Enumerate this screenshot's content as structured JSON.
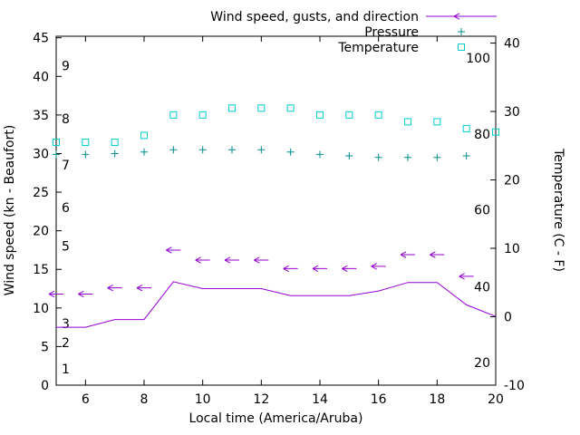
{
  "chart_data": {
    "type": "line",
    "title": "",
    "xlabel": "Local time (America/Aruba)",
    "ylabel_left": "Wind speed (kn - Beaufort)",
    "ylabel_right": "Temperature (C - F)",
    "x_range": [
      5,
      20
    ],
    "x_ticks": [
      6,
      8,
      10,
      12,
      14,
      16,
      18,
      20
    ],
    "y_left_range": [
      0,
      45.2
    ],
    "y_left_ticks": [
      0,
      5,
      10,
      15,
      20,
      25,
      30,
      35,
      40,
      45
    ],
    "y_right_range": [
      -10,
      41
    ],
    "y_right_ticks": [
      -10,
      0,
      10,
      20,
      30,
      40
    ],
    "beaufort_labels": [
      {
        "label": "1",
        "kn": 2.1
      },
      {
        "label": "2",
        "kn": 5.5
      },
      {
        "label": "3",
        "kn": 8.0
      },
      {
        "label": "5",
        "kn": 18.0
      },
      {
        "label": "6",
        "kn": 23.0
      },
      {
        "label": "7",
        "kn": 28.5
      },
      {
        "label": "8",
        "kn": 34.5
      },
      {
        "label": "9",
        "kn": 41.4
      }
    ],
    "fahrenheit_labels": [
      {
        "label": "20",
        "c": -6.7
      },
      {
        "label": "40",
        "c": 4.4
      },
      {
        "label": "60",
        "c": 15.6
      },
      {
        "label": "80",
        "c": 26.7
      },
      {
        "label": "100",
        "c": 37.8
      }
    ],
    "x": [
      5,
      6,
      7,
      8,
      9,
      10,
      11,
      12,
      13,
      14,
      15,
      16,
      17,
      18,
      19,
      20
    ],
    "series": [
      {
        "name": "Wind speed",
        "type": "line",
        "axis": "left",
        "color": "#9400d3",
        "values": [
          7.5,
          7.5,
          8.5,
          8.5,
          13.4,
          12.5,
          12.5,
          12.5,
          11.6,
          11.6,
          11.6,
          12.2,
          13.3,
          13.3,
          10.4,
          8.9
        ]
      },
      {
        "name": "Gusts with direction",
        "type": "arrow",
        "axis": "left",
        "color": "#9400d3",
        "values": [
          11.8,
          11.8,
          12.6,
          12.6,
          17.5,
          16.2,
          16.2,
          16.2,
          15.1,
          15.1,
          15.1,
          15.4,
          16.9,
          16.9,
          14.1,
          null
        ]
      },
      {
        "name": "Pressure",
        "type": "plus",
        "axis": "left",
        "color": "#008b8b",
        "values": [
          29.9,
          29.9,
          30.0,
          30.2,
          30.5,
          30.5,
          30.5,
          30.5,
          30.2,
          29.9,
          29.7,
          29.5,
          29.5,
          29.5,
          29.7,
          null
        ]
      },
      {
        "name": "Temperature",
        "type": "square",
        "axis": "right",
        "color": "#00ced1",
        "values": [
          25.5,
          25.5,
          25.5,
          26.5,
          29.5,
          29.5,
          30.5,
          30.5,
          30.5,
          29.5,
          29.5,
          29.5,
          28.5,
          28.5,
          27.5,
          27.0
        ]
      }
    ],
    "legend": [
      {
        "label": "Wind speed, gusts, and direction",
        "marker": "line-arrow",
        "color": "#9400d3"
      },
      {
        "label": "Pressure",
        "marker": "plus",
        "color": "#008b8b"
      },
      {
        "label": "Temperature",
        "marker": "square",
        "color": "#00ced1"
      }
    ]
  }
}
